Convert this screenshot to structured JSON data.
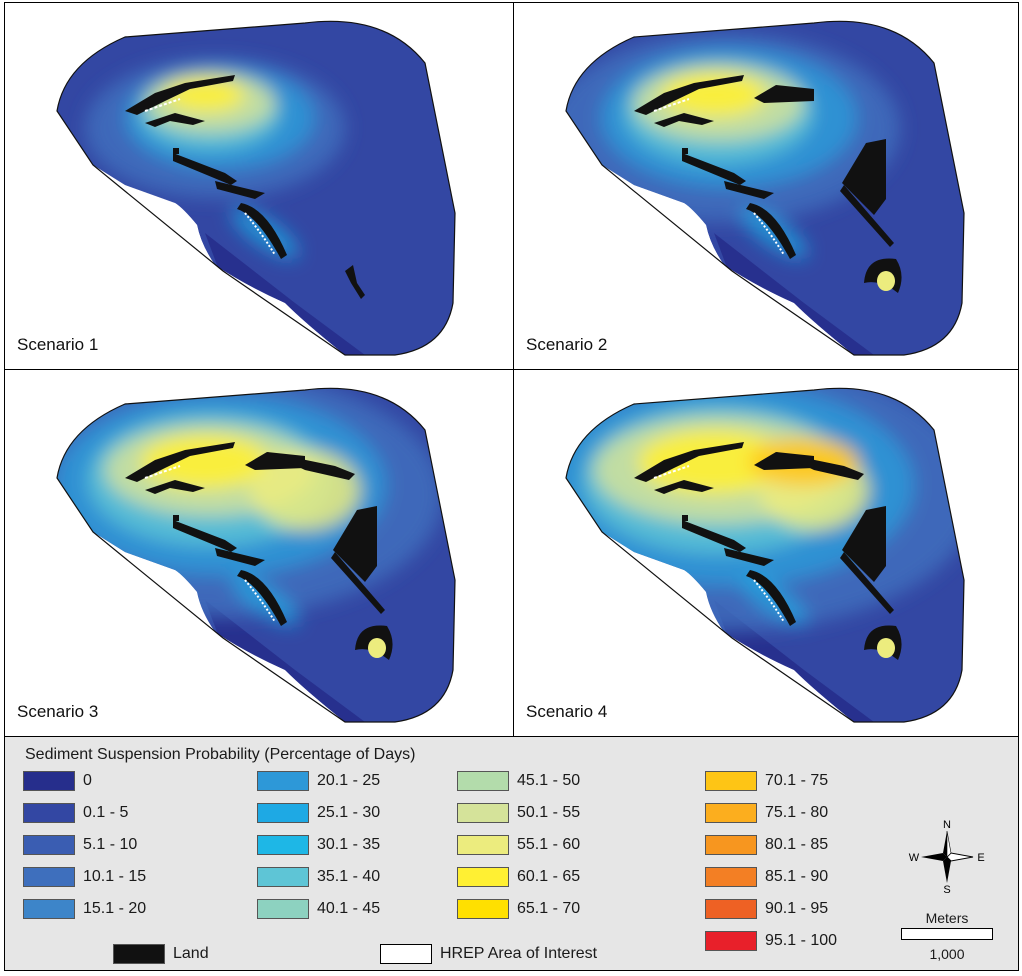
{
  "panels": [
    {
      "label": "Scenario 1",
      "level": 1
    },
    {
      "label": "Scenario 2",
      "level": 2
    },
    {
      "label": "Scenario 3",
      "level": 3
    },
    {
      "label": "Scenario 4",
      "level": 4
    }
  ],
  "legend": {
    "title": "Sediment Suspension Probability (Percentage of Days)",
    "classes": [
      {
        "label": "0",
        "color": "#262e8c"
      },
      {
        "label": "0.1 - 5",
        "color": "#3347a3"
      },
      {
        "label": "5.1 - 10",
        "color": "#3a5db2"
      },
      {
        "label": "10.1 - 15",
        "color": "#3e6fbd"
      },
      {
        "label": "15.1 - 20",
        "color": "#3d85c9"
      },
      {
        "label": "20.1 - 25",
        "color": "#2d98d8"
      },
      {
        "label": "25.1 - 30",
        "color": "#1ea9e4"
      },
      {
        "label": "30.1 - 35",
        "color": "#1eb7e6"
      },
      {
        "label": "35.1 - 40",
        "color": "#5ec5d6"
      },
      {
        "label": "40.1 - 45",
        "color": "#8dd2c0"
      },
      {
        "label": "45.1 - 50",
        "color": "#b3dcab"
      },
      {
        "label": "50.1 - 55",
        "color": "#d5e39a"
      },
      {
        "label": "55.1 - 60",
        "color": "#ecec7e"
      },
      {
        "label": "60.1 - 65",
        "color": "#fff033"
      },
      {
        "label": "65.1 - 70",
        "color": "#ffe000"
      },
      {
        "label": "70.1 - 75",
        "color": "#fec515"
      },
      {
        "label": "75.1 - 80",
        "color": "#fcae1e"
      },
      {
        "label": "80.1 - 85",
        "color": "#f7961f"
      },
      {
        "label": "85.1 - 90",
        "color": "#f37f24"
      },
      {
        "label": "90.1 - 95",
        "color": "#ee6124"
      },
      {
        "label": "95.1 - 100",
        "color": "#e8202a"
      }
    ],
    "land_label": "Land",
    "land_color": "#111111",
    "aoi_label": "HREP Area of Interest"
  },
  "compass": {
    "n": "N",
    "s": "S",
    "e": "E",
    "w": "W"
  },
  "scale": {
    "title": "Meters",
    "value": "1,000"
  }
}
